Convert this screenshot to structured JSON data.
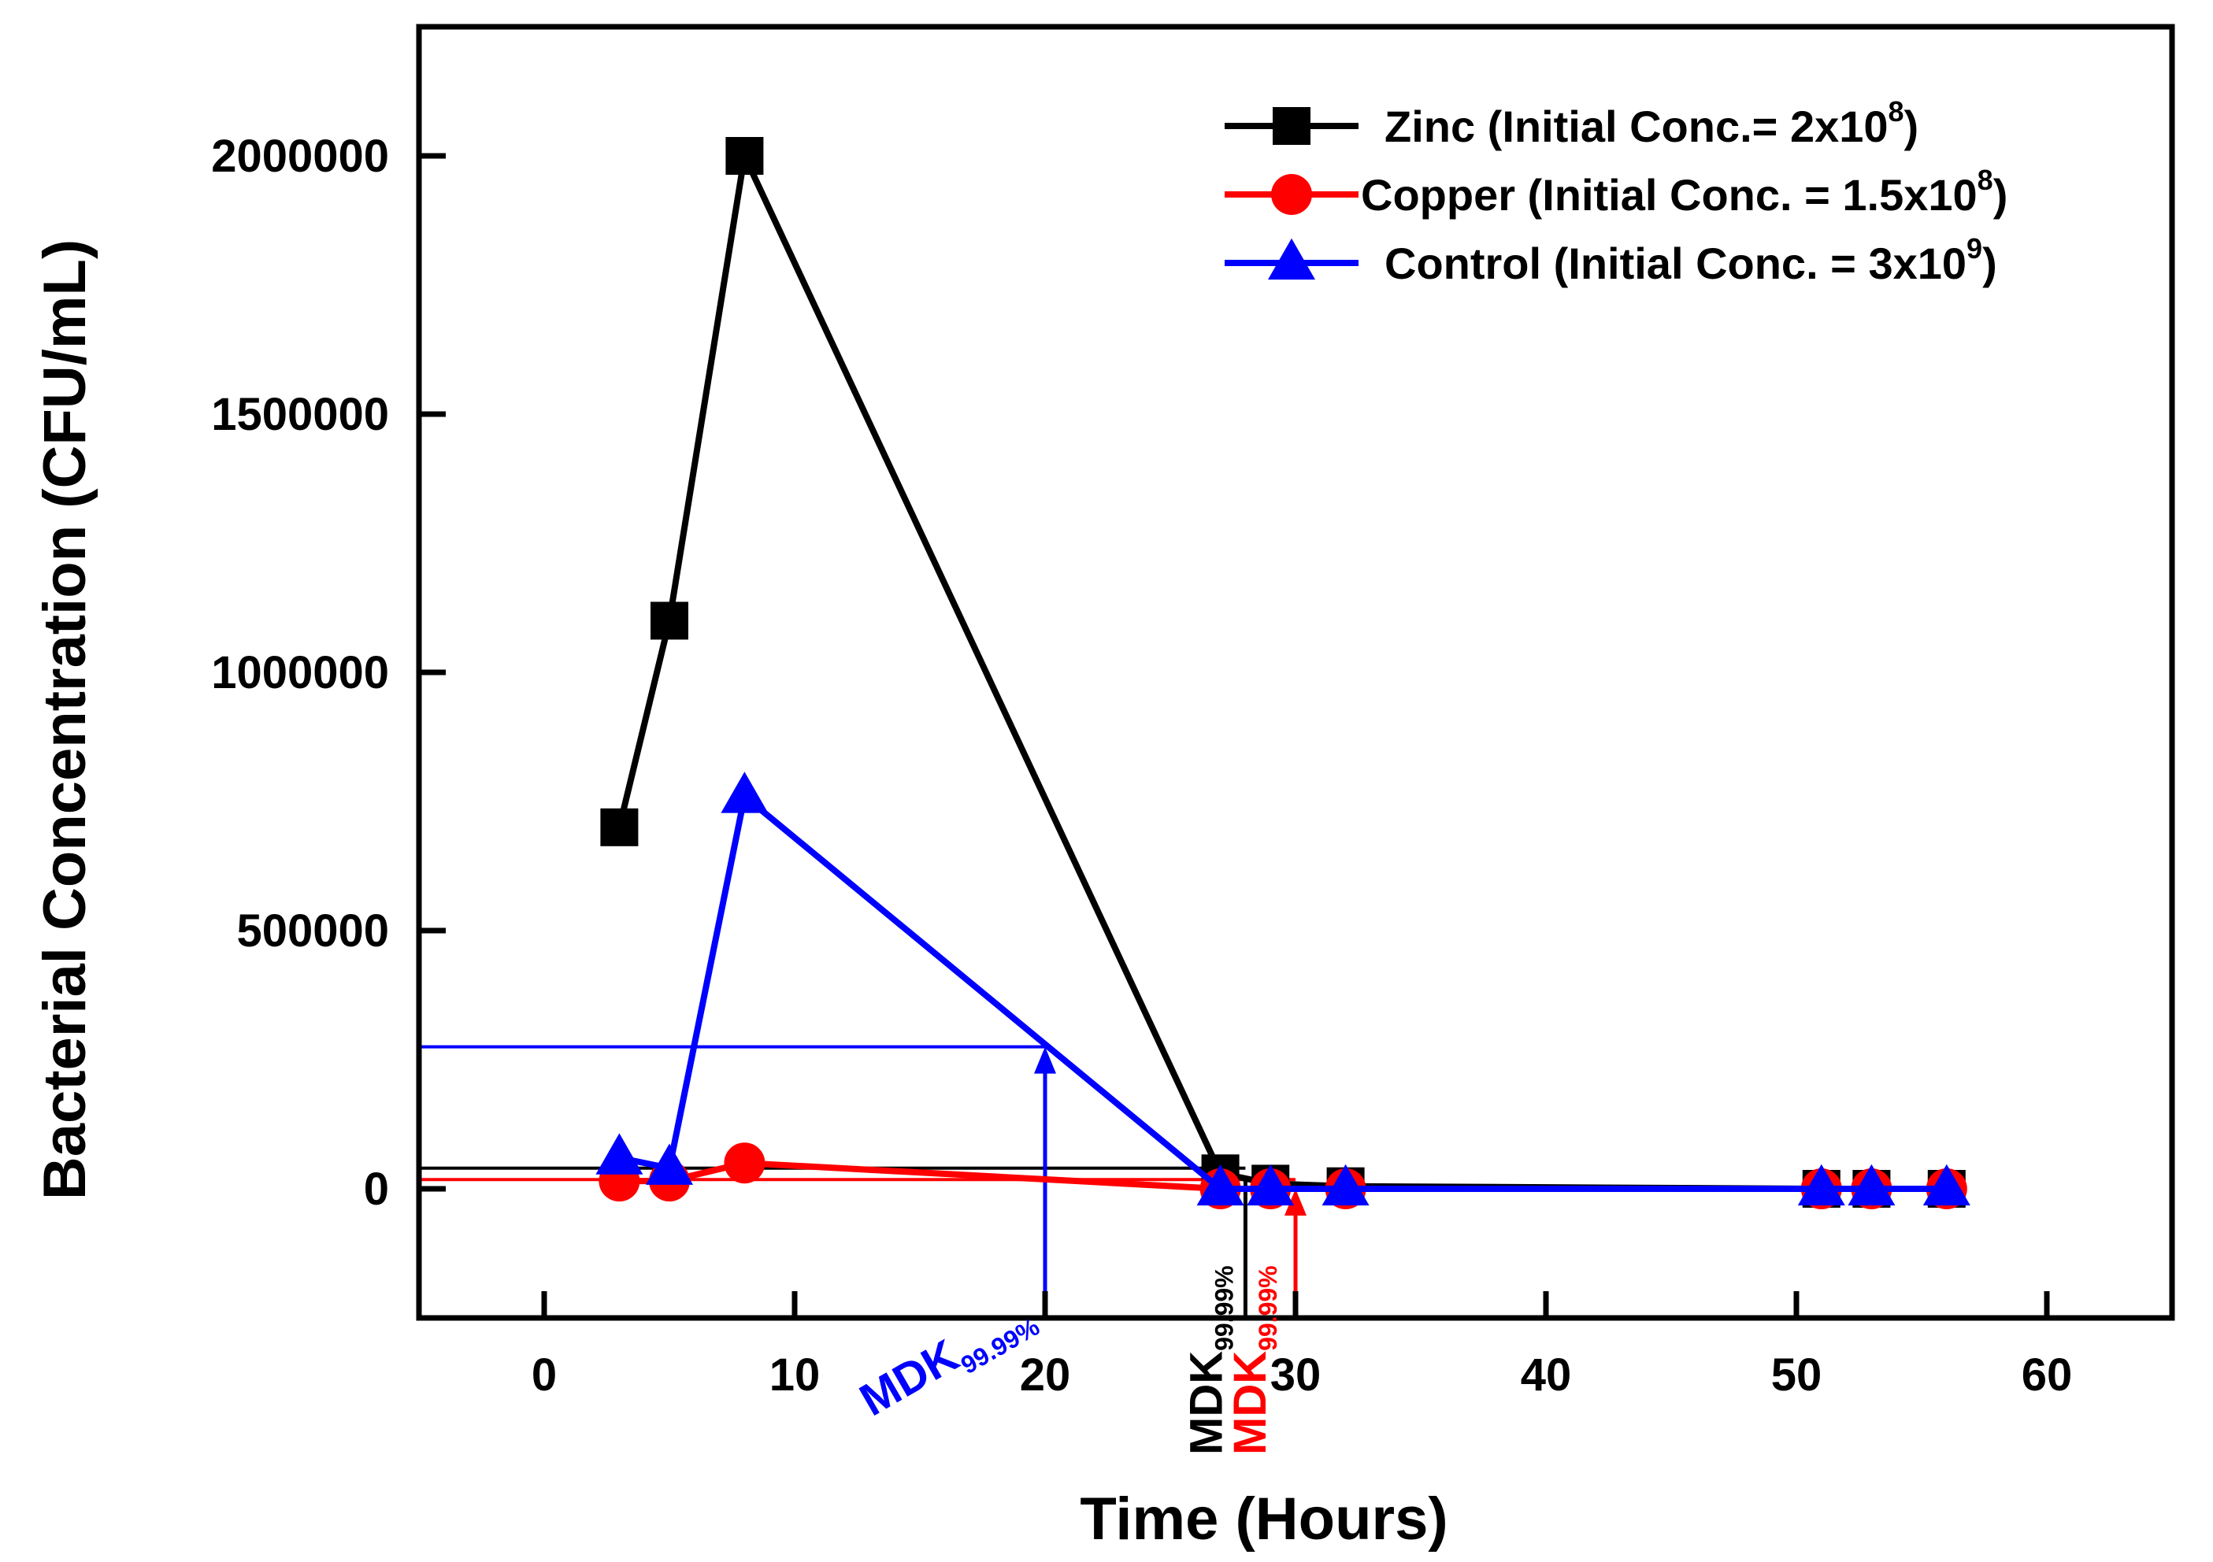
{
  "chart_data": {
    "type": "line",
    "title": "",
    "xlabel": "Time (Hours)",
    "ylabel": "Bacterial Concentration (CFU/mL)",
    "xlim": [
      -5,
      65
    ],
    "ylim": [
      -250000,
      2250000
    ],
    "xticks": [
      0,
      10,
      20,
      30,
      40,
      50,
      60
    ],
    "yticks": [
      0,
      500000,
      1000000,
      1500000,
      2000000
    ],
    "xtick_labels": [
      "0",
      "10",
      "20",
      "30",
      "40",
      "50",
      "60"
    ],
    "ytick_labels": [
      "0",
      "500000",
      "1000000",
      "1500000",
      "2000000"
    ],
    "legend_position": "top-right",
    "series": [
      {
        "name": "Zinc (Initial Conc.= 2x10",
        "name_sup": "8",
        "name_end": ")",
        "color": "#000000",
        "marker": "square",
        "x": [
          3,
          5,
          8,
          27,
          29,
          32,
          51,
          53,
          56
        ],
        "y": [
          700000,
          1100000,
          2000000,
          30000,
          10000,
          5000,
          0,
          0,
          0
        ]
      },
      {
        "name": "Copper (Initial Conc. = 1.5x10",
        "name_sup": "8",
        "name_end": ")",
        "color": "#ff0000",
        "marker": "circle",
        "x": [
          3,
          5,
          8,
          27,
          29,
          32,
          51,
          53,
          56
        ],
        "y": [
          15000,
          15000,
          50000,
          0,
          0,
          0,
          0,
          0,
          0
        ]
      },
      {
        "name": "Control (Initial Conc. = 3x10",
        "name_sup": "9",
        "name_end": ")",
        "color": "#0000ff",
        "marker": "triangle",
        "x": [
          3,
          5,
          8,
          27,
          29,
          32,
          51,
          53,
          56
        ],
        "y": [
          60000,
          40000,
          760000,
          0,
          0,
          0,
          0,
          0,
          0
        ]
      }
    ],
    "reference_lines": [
      {
        "series": "Zinc",
        "color": "#000000",
        "y_level": 40000,
        "x_drop": 28
      },
      {
        "series": "Copper",
        "color": "#ff0000",
        "y_level": 18000,
        "x_drop": 30
      },
      {
        "series": "Control",
        "color": "#0000ff",
        "y_level": 275000,
        "x_drop": 20
      }
    ],
    "annotations": [
      {
        "text": "MDK",
        "sub": "99.99%",
        "color": "#0000ff",
        "x": 20
      },
      {
        "text": "MDK",
        "sub": "99.99%",
        "color": "#000000",
        "x": 28
      },
      {
        "text": "MDK",
        "sub": "99.99%",
        "color": "#ff0000",
        "x": 30
      }
    ]
  }
}
